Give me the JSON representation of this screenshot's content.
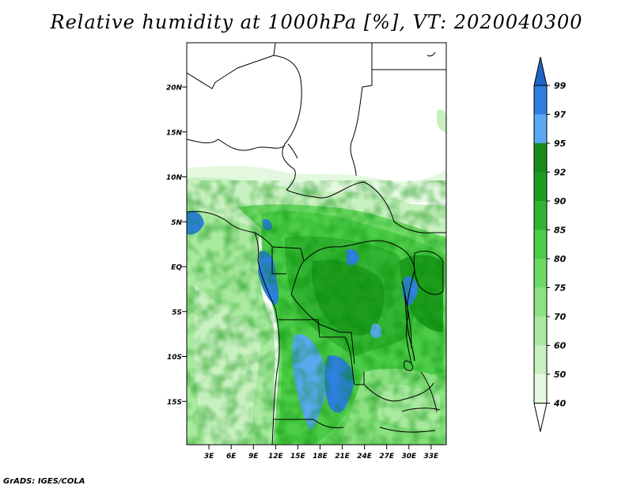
{
  "title": "Relative humidity at 1000hPa [%], VT: 2020040300",
  "credit": "GrADS: IGES/COLA",
  "chart_data": {
    "type": "heatmap",
    "title": "Relative humidity at 1000hPa [%], VT: 2020040300",
    "variable": "Relative humidity",
    "level": "1000hPa",
    "unit": "%",
    "valid_time": "2020040300",
    "lon_ticks": [
      {
        "value": 3,
        "label": "3E"
      },
      {
        "value": 6,
        "label": "6E"
      },
      {
        "value": 9,
        "label": "9E"
      },
      {
        "value": 12,
        "label": "12E"
      },
      {
        "value": 15,
        "label": "15E"
      },
      {
        "value": 18,
        "label": "18E"
      },
      {
        "value": 21,
        "label": "21E"
      },
      {
        "value": 24,
        "label": "24E"
      },
      {
        "value": 27,
        "label": "27E"
      },
      {
        "value": 30,
        "label": "30E"
      },
      {
        "value": 33,
        "label": "33E"
      }
    ],
    "lat_ticks": [
      {
        "value": 20,
        "label": "20N"
      },
      {
        "value": 15,
        "label": "15N"
      },
      {
        "value": 10,
        "label": "10N"
      },
      {
        "value": 5,
        "label": "5N"
      },
      {
        "value": 0,
        "label": "EQ"
      },
      {
        "value": -5,
        "label": "5S"
      },
      {
        "value": -10,
        "label": "10S"
      },
      {
        "value": -15,
        "label": "15S"
      }
    ],
    "lon_range": [
      0,
      35
    ],
    "lat_range": [
      -20,
      25
    ],
    "colorbar": {
      "orientation": "vertical",
      "placement": "right",
      "extend": "both",
      "levels": [
        {
          "label": "40",
          "value": 40,
          "color": "#ffffff"
        },
        {
          "label": "50",
          "value": 50,
          "color": "#e4f8e0"
        },
        {
          "label": "60",
          "value": 60,
          "color": "#c8f0c0"
        },
        {
          "label": "70",
          "value": 70,
          "color": "#aaeaa0"
        },
        {
          "label": "75",
          "value": 75,
          "color": "#8ce282"
        },
        {
          "label": "80",
          "value": 80,
          "color": "#6cd964"
        },
        {
          "label": "85",
          "value": 85,
          "color": "#4ccc48"
        },
        {
          "label": "90",
          "value": 90,
          "color": "#32b432"
        },
        {
          "label": "92",
          "value": 92,
          "color": "#1e9c1e"
        },
        {
          "label": "95",
          "value": 95,
          "color": "#1a8c1a"
        },
        {
          "label": "97",
          "value": 97,
          "color": "#5aa8f0"
        },
        {
          "label": "99",
          "value": 99,
          "color": "#2f7fe0"
        }
      ],
      "top_color": "#2064c8"
    }
  }
}
